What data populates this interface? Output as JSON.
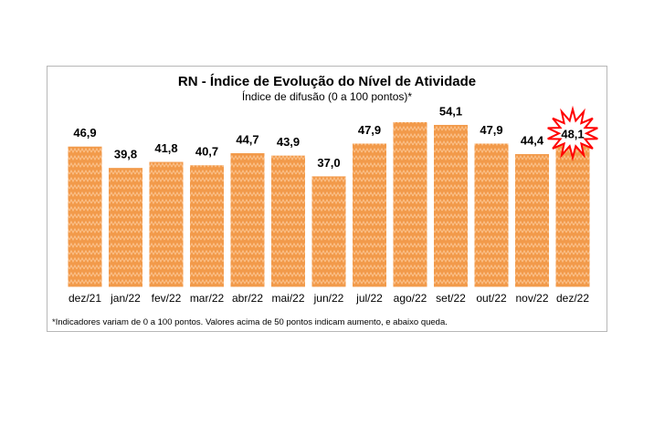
{
  "chart_data": {
    "type": "bar",
    "title": "RN - Índice de Evolução do Nível de Atividade",
    "subtitle": "Índice de difusão (0 a 100 pontos)*",
    "footnote": "*Indicadores variam de 0 a 100 pontos. Valores acima de 50 pontos indicam aumento, e abaixo queda.",
    "categories": [
      "dez/21",
      "jan/22",
      "fev/22",
      "mar/22",
      "abr/22",
      "mai/22",
      "jun/22",
      "jul/22",
      "ago/22",
      "set/22",
      "out/22",
      "nov/22",
      "dez/22"
    ],
    "values": [
      46.9,
      39.8,
      41.8,
      40.7,
      44.7,
      43.9,
      37.0,
      47.9,
      55.0,
      54.1,
      47.9,
      44.4,
      48.1
    ],
    "labels": [
      "46,9",
      "39,8",
      "41,8",
      "40,7",
      "44,7",
      "43,9",
      "37,0",
      "47,9",
      "",
      "54,1",
      "47,9",
      "44,4",
      "48,1"
    ],
    "highlight_index": 12,
    "ylim": [
      0,
      60
    ],
    "grid": false,
    "colors": {
      "bar": "#f29a4a",
      "bar_pattern": "#fbc28c",
      "highlight_burst": "#ff0000",
      "frame": "#b7b7b7"
    }
  }
}
